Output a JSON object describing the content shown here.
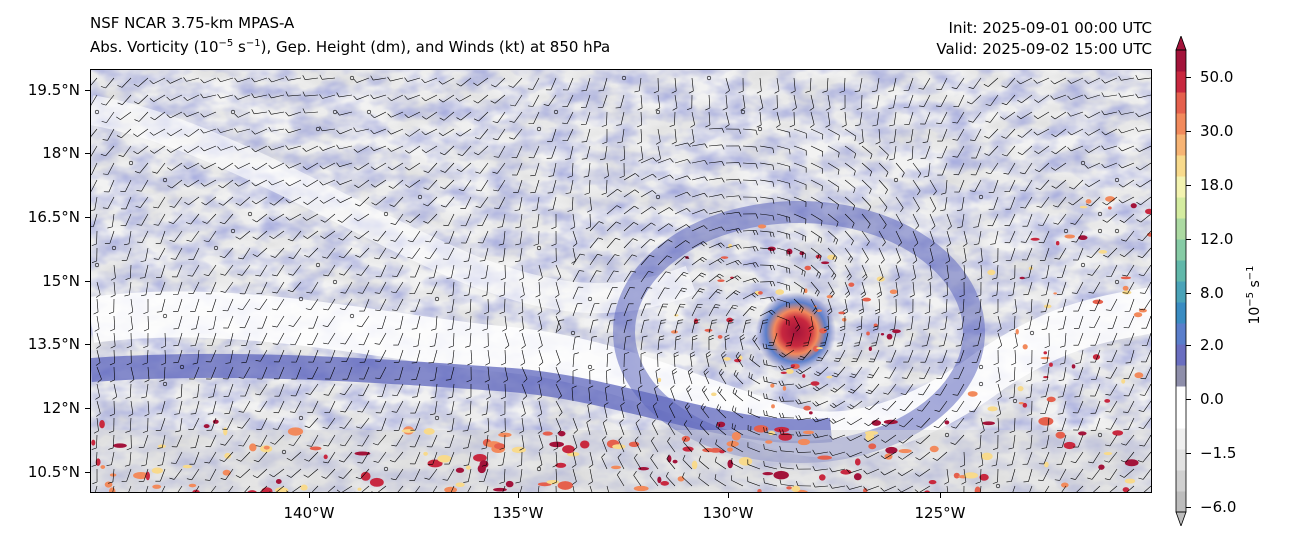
{
  "header": {
    "model": "NSF NCAR 3.75-km MPAS-A",
    "fields_prefix": "Abs. Vorticity (10",
    "fields_exp1": "−5",
    "fields_mid": " s",
    "fields_exp2": "−1",
    "fields_suffix": "), Gep. Height (dm), and Winds (kt) at 850 hPa",
    "init": "Init: 2025-09-01 00:00 UTC",
    "valid": "Valid: 2025-09-02 15:00 UTC"
  },
  "map": {
    "lat_labels": [
      "19.5°N",
      "18°N",
      "16.5°N",
      "15°N",
      "13.5°N",
      "12°N",
      "10.5°N"
    ],
    "lon_labels": [
      "140°W",
      "135°W",
      "130°W",
      "125°W"
    ],
    "storm_center": {
      "lon": -128.6,
      "lat": 13.8
    },
    "lon_range": [
      -144.7,
      -119.7
    ],
    "lat_range": [
      10.0,
      20.0
    ]
  },
  "colorbar": {
    "labels": [
      "50.0",
      "30.0",
      "18.0",
      "12.0",
      "8.0",
      "2.0",
      "0.0",
      "−1.5",
      "−6.0"
    ],
    "unit_base": "10",
    "unit_exp1": "−5",
    "unit_mid": " s",
    "unit_exp2": "−1",
    "colors": [
      "#bdbdbd",
      "#d0d0d0",
      "#e2e2e2",
      "#f0f0f0",
      "#ffffff",
      "#ffffff",
      "#8e8eaa",
      "#6a6ec0",
      "#5a7ecb",
      "#3a8cc2",
      "#4aa3b8",
      "#61b8aa",
      "#86cba5",
      "#acdaa2",
      "#d4eca0",
      "#f3f3b0",
      "#f8da8c",
      "#f7b474",
      "#f28a5c",
      "#e5604d",
      "#c8283f",
      "#a3133a"
    ]
  }
}
